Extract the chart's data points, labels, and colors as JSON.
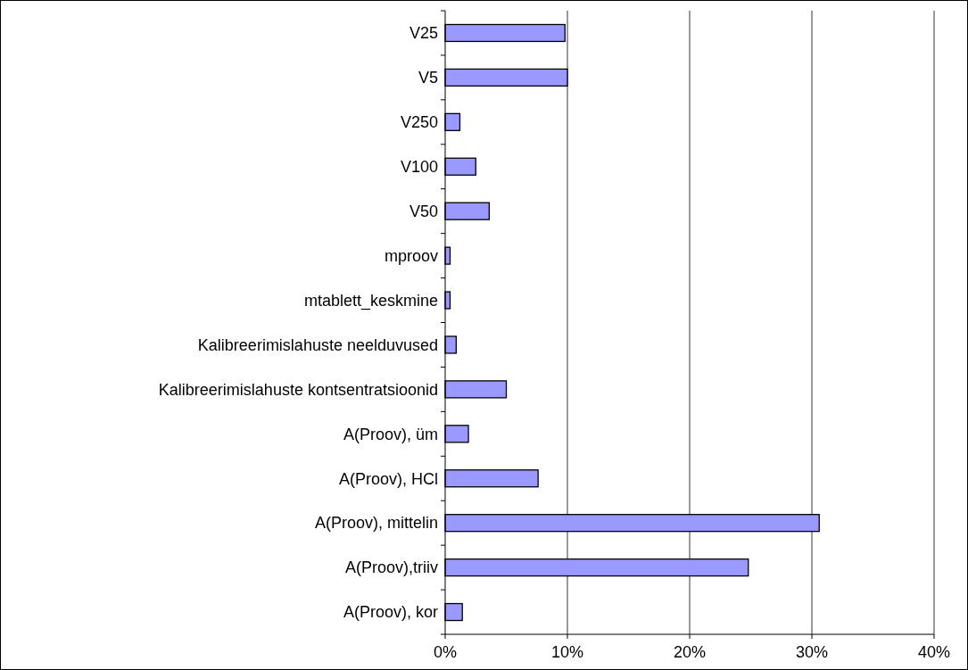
{
  "chart_data": {
    "type": "bar",
    "orientation": "horizontal",
    "categories": [
      "V25",
      "V5",
      "V250",
      "V100",
      "V50",
      "mproov",
      "mtablett_keskmine",
      "Kalibreerimislahuste neelduvused",
      "Kalibreerimislahuste kontsentratsioonid",
      "A(Proov), üm",
      "A(Proov), HCl",
      "A(Proov), mittelin",
      "A(Proov),triiv",
      "A(Proov), kor"
    ],
    "values": [
      9.8,
      10.0,
      1.2,
      2.5,
      3.6,
      0.4,
      0.4,
      0.9,
      5.0,
      1.9,
      7.6,
      30.6,
      24.8,
      1.4
    ],
    "color": "#9999ff",
    "xlim": [
      0,
      40
    ],
    "xticks": [
      {
        "value": 0,
        "label": "0%"
      },
      {
        "value": 10,
        "label": "10%"
      },
      {
        "value": 20,
        "label": "20%"
      },
      {
        "value": 30,
        "label": "30%"
      },
      {
        "value": 40,
        "label": "40%"
      }
    ],
    "grid": "x"
  }
}
